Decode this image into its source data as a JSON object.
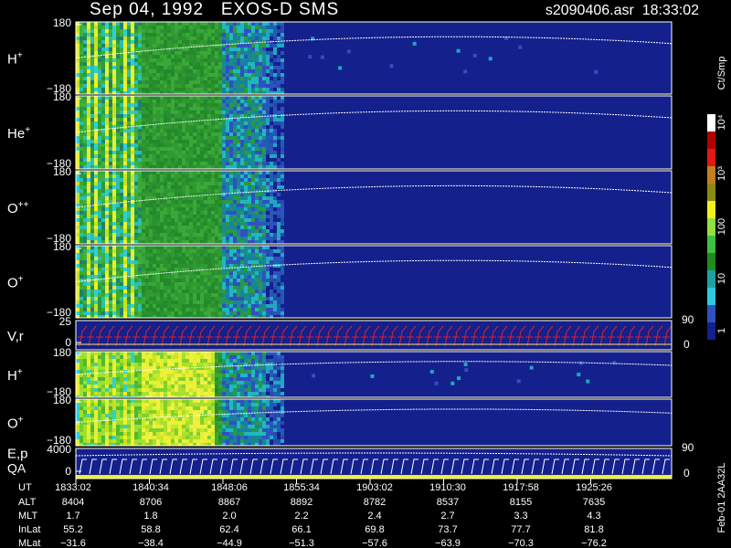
{
  "header": {
    "title": "Sep 04, 1992   EXOS-D SMS",
    "file": "s2090406.asr  18:33:02"
  },
  "panels": [
    {
      "label": "H",
      "sup": "+",
      "ticks": [
        "180",
        "−180"
      ]
    },
    {
      "label": "He",
      "sup": "+",
      "ticks": [
        "180",
        "−180"
      ]
    },
    {
      "label": "O",
      "sup": "++",
      "ticks": [
        "180",
        "−180"
      ]
    },
    {
      "label": "O",
      "sup": "+",
      "ticks": [
        "180",
        "−180"
      ]
    },
    {
      "label": "V,r",
      "sup": "",
      "ticks": [
        "25",
        "0"
      ],
      "right_ticks": [
        "90",
        "0"
      ]
    },
    {
      "label": "H",
      "sup": "+",
      "ticks": [
        "180",
        "−180"
      ]
    },
    {
      "label": "O",
      "sup": "+",
      "ticks": [
        "180",
        "−180"
      ]
    },
    {
      "label": "E,p",
      "label2": "QA",
      "sup": "",
      "ticks": [
        "4000",
        "0"
      ],
      "right_ticks": [
        "90",
        "0"
      ]
    }
  ],
  "colorbar": {
    "unit": "Ct/Smp",
    "labels": [
      "10⁴",
      "10³",
      "100",
      "10",
      "1"
    ]
  },
  "footer_note": "Feb-01 2AA32L",
  "table": {
    "rows": [
      [
        "UT",
        "1833:02",
        "1840:34",
        "1848:06",
        "1855:34",
        "1903:02",
        "1910:30",
        "1917:58",
        "1925:26"
      ],
      [
        "ALT",
        "8404",
        "8706",
        "8867",
        "8892",
        "8782",
        "8537",
        "8155",
        "7635"
      ],
      [
        "MLT",
        "1.7",
        "1.8",
        "2.0",
        "2.2",
        "2.4",
        "2.7",
        "3.3",
        "4.3"
      ],
      [
        "InLat",
        "55.2",
        "58.8",
        "62.4",
        "66.1",
        "69.8",
        "73.7",
        "77.7",
        "81.8"
      ],
      [
        "MLat",
        "−31.6",
        "−38.4",
        "−44.9",
        "−51.3",
        "−57.6",
        "−63.9",
        "−70.3",
        "−76.2"
      ]
    ]
  }
}
